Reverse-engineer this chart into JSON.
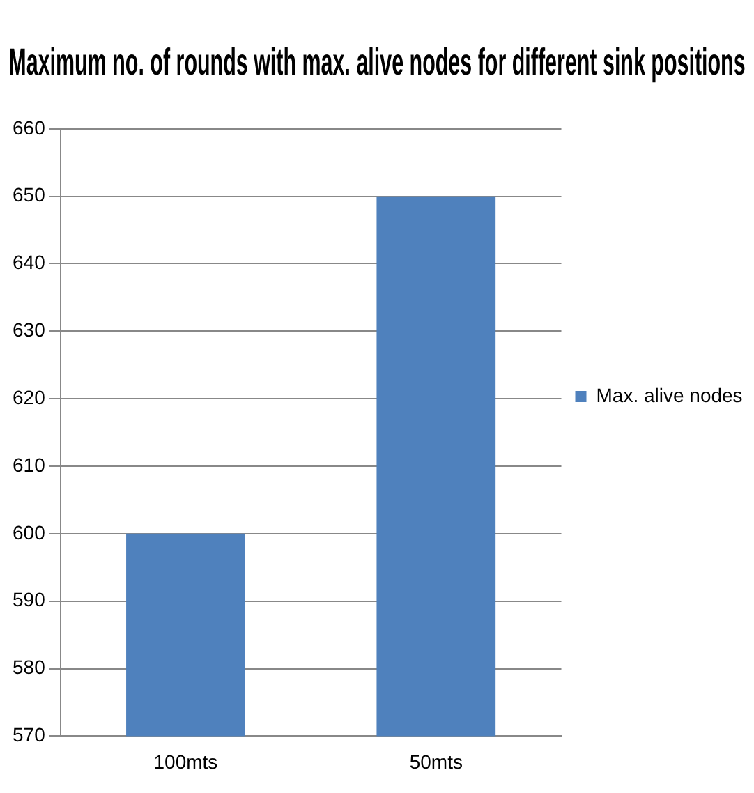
{
  "chart_data": {
    "type": "bar",
    "title": "Maximum no. of rounds with max. alive nodes for different sink positions",
    "categories": [
      "100mts",
      "50mts"
    ],
    "series": [
      {
        "name": "Max. alive nodes",
        "color": "#4f81bd",
        "values": [
          600,
          650
        ]
      }
    ],
    "ylim": [
      570,
      660
    ],
    "yticks": [
      570,
      580,
      590,
      600,
      610,
      620,
      630,
      640,
      650,
      660
    ],
    "grid": "y",
    "legend": "right"
  }
}
